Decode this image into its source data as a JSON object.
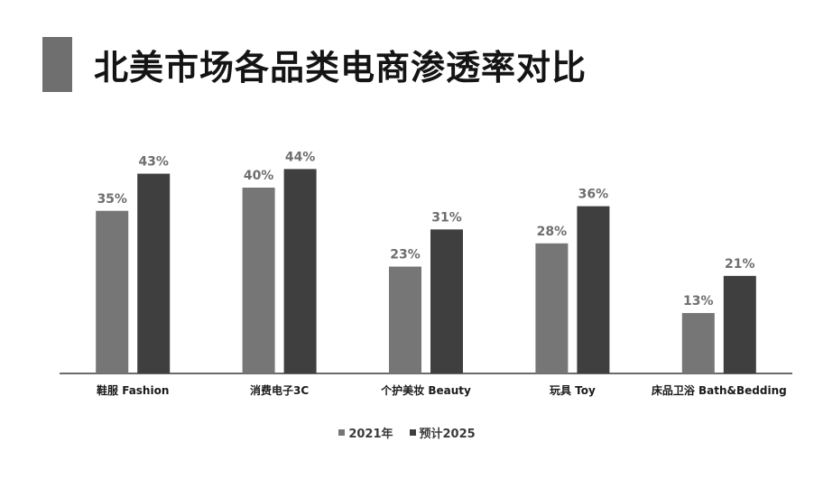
{
  "title": "北美市场各品类电商渗透率对比",
  "colors": {
    "series1": "#767676",
    "series2": "#3f3f3f",
    "axis": "#3a3a3a",
    "accent": "#6f6f6f"
  },
  "chart_data": {
    "type": "bar",
    "title": "北美市场各品类电商渗透率对比",
    "categories": [
      "鞋服 Fashion",
      "消费电子3C",
      "个护美妆 Beauty",
      "玩具 Toy",
      "床品卫浴 Bath&Bedding"
    ],
    "series": [
      {
        "name": "2021年",
        "values": [
          35,
          40,
          23,
          28,
          13
        ],
        "labels": [
          "35%",
          "40%",
          "23%",
          "28%",
          "13%"
        ]
      },
      {
        "name": "预计2025",
        "values": [
          43,
          44,
          31,
          36,
          21
        ],
        "labels": [
          "43%",
          "44%",
          "31%",
          "36%",
          "21%"
        ]
      }
    ],
    "ylim": [
      0,
      50
    ],
    "grid": false,
    "legend_position": "bottom"
  }
}
